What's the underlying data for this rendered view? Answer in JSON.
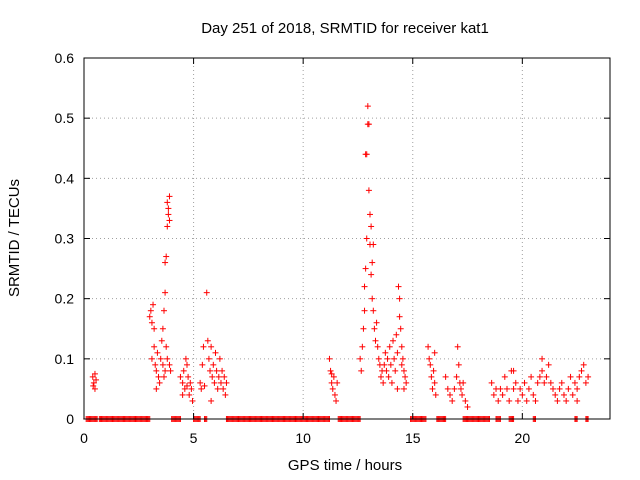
{
  "chart_data": {
    "type": "scatter",
    "title": "Day 251 of 2018, SRMTID for receiver kat1",
    "xlabel": "GPS time / hours",
    "ylabel": "SRMTID / TECUs",
    "xlim": [
      0,
      24
    ],
    "ylim": [
      0,
      0.6
    ],
    "xticks": [
      0,
      5,
      10,
      15,
      20
    ],
    "yticks": [
      0,
      0.1,
      0.2,
      0.3,
      0.4,
      0.5,
      0.6
    ],
    "xtick_labels": [
      "0",
      "5",
      "10",
      "15",
      "20"
    ],
    "ytick_labels": [
      "0",
      "0.1",
      "0.2",
      "0.3",
      "0.4",
      "0.5",
      "0.6"
    ],
    "grid": true,
    "marker": "+",
    "color": "#ff0000",
    "series": [
      {
        "name": "kat1",
        "points": [
          [
            0.4,
            0.07
          ],
          [
            0.45,
            0.06
          ],
          [
            0.5,
            0.075
          ],
          [
            0.5,
            0.05
          ],
          [
            0.55,
            0.065
          ],
          [
            0.42,
            0.055
          ],
          [
            3.0,
            0.17
          ],
          [
            3.05,
            0.18
          ],
          [
            3.1,
            0.16
          ],
          [
            3.15,
            0.19
          ],
          [
            3.2,
            0.15
          ],
          [
            3.1,
            0.1
          ],
          [
            3.2,
            0.12
          ],
          [
            3.25,
            0.09
          ],
          [
            3.3,
            0.08
          ],
          [
            3.35,
            0.11
          ],
          [
            3.4,
            0.07
          ],
          [
            3.45,
            0.06
          ],
          [
            3.3,
            0.05
          ],
          [
            3.5,
            0.1
          ],
          [
            3.55,
            0.13
          ],
          [
            3.6,
            0.15
          ],
          [
            3.65,
            0.18
          ],
          [
            3.7,
            0.21
          ],
          [
            3.75,
            0.27
          ],
          [
            3.7,
            0.26
          ],
          [
            3.8,
            0.32
          ],
          [
            3.85,
            0.34
          ],
          [
            3.8,
            0.36
          ],
          [
            3.9,
            0.37
          ],
          [
            3.85,
            0.35
          ],
          [
            3.9,
            0.33
          ],
          [
            3.75,
            0.12
          ],
          [
            3.8,
            0.1
          ],
          [
            3.9,
            0.09
          ],
          [
            3.95,
            0.08
          ],
          [
            3.6,
            0.09
          ],
          [
            3.65,
            0.07
          ],
          [
            3.7,
            0.08
          ],
          [
            4.4,
            0.07
          ],
          [
            4.5,
            0.06
          ],
          [
            4.55,
            0.08
          ],
          [
            4.6,
            0.05
          ],
          [
            4.65,
            0.1
          ],
          [
            4.7,
            0.09
          ],
          [
            4.75,
            0.07
          ],
          [
            4.8,
            0.04
          ],
          [
            4.85,
            0.06
          ],
          [
            4.9,
            0.05
          ],
          [
            4.95,
            0.03
          ],
          [
            4.5,
            0.04
          ],
          [
            4.7,
            0.055
          ],
          [
            5.3,
            0.06
          ],
          [
            5.35,
            0.05
          ],
          [
            5.4,
            0.09
          ],
          [
            5.45,
            0.12
          ],
          [
            5.5,
            0.055
          ],
          [
            5.6,
            0.21
          ],
          [
            5.65,
            0.13
          ],
          [
            5.7,
            0.1
          ],
          [
            5.75,
            0.08
          ],
          [
            5.8,
            0.12
          ],
          [
            5.85,
            0.07
          ],
          [
            5.9,
            0.09
          ],
          [
            5.95,
            0.06
          ],
          [
            6.0,
            0.11
          ],
          [
            6.05,
            0.08
          ],
          [
            6.1,
            0.05
          ],
          [
            6.15,
            0.07
          ],
          [
            6.2,
            0.1
          ],
          [
            6.25,
            0.06
          ],
          [
            6.3,
            0.08
          ],
          [
            6.35,
            0.05
          ],
          [
            6.4,
            0.07
          ],
          [
            6.45,
            0.04
          ],
          [
            6.5,
            0.06
          ],
          [
            5.8,
            0.03
          ],
          [
            11.2,
            0.1
          ],
          [
            11.25,
            0.08
          ],
          [
            11.3,
            0.06
          ],
          [
            11.35,
            0.05
          ],
          [
            11.4,
            0.07
          ],
          [
            11.45,
            0.04
          ],
          [
            11.5,
            0.03
          ],
          [
            11.55,
            0.06
          ],
          [
            11.3,
            0.075
          ],
          [
            12.6,
            0.1
          ],
          [
            12.65,
            0.08
          ],
          [
            12.7,
            0.12
          ],
          [
            12.75,
            0.15
          ],
          [
            12.8,
            0.18
          ],
          [
            12.8,
            0.22
          ],
          [
            12.85,
            0.25
          ],
          [
            12.9,
            0.3
          ],
          [
            12.9,
            0.44
          ],
          [
            12.95,
            0.49
          ],
          [
            12.95,
            0.52
          ],
          [
            13.0,
            0.49
          ],
          [
            12.85,
            0.44
          ],
          [
            13.0,
            0.38
          ],
          [
            13.05,
            0.34
          ],
          [
            13.05,
            0.29
          ],
          [
            13.1,
            0.32
          ],
          [
            13.1,
            0.24
          ],
          [
            13.15,
            0.2
          ],
          [
            13.15,
            0.26
          ],
          [
            13.2,
            0.29
          ],
          [
            13.2,
            0.18
          ],
          [
            13.25,
            0.15
          ],
          [
            13.3,
            0.13
          ],
          [
            13.35,
            0.16
          ],
          [
            13.4,
            0.12
          ],
          [
            13.45,
            0.1
          ],
          [
            13.5,
            0.09
          ],
          [
            13.55,
            0.07
          ],
          [
            13.6,
            0.08
          ],
          [
            13.65,
            0.06
          ],
          [
            13.7,
            0.09
          ],
          [
            13.75,
            0.11
          ],
          [
            13.8,
            0.08
          ],
          [
            13.85,
            0.1
          ],
          [
            13.9,
            0.07
          ],
          [
            13.95,
            0.12
          ],
          [
            14.0,
            0.09
          ],
          [
            14.05,
            0.06
          ],
          [
            14.1,
            0.13
          ],
          [
            14.15,
            0.1
          ],
          [
            14.2,
            0.08
          ],
          [
            14.25,
            0.14
          ],
          [
            14.3,
            0.11
          ],
          [
            14.35,
            0.22
          ],
          [
            14.4,
            0.2
          ],
          [
            14.4,
            0.17
          ],
          [
            14.45,
            0.15
          ],
          [
            14.5,
            0.12
          ],
          [
            14.5,
            0.09
          ],
          [
            14.55,
            0.1
          ],
          [
            14.6,
            0.08
          ],
          [
            14.65,
            0.07
          ],
          [
            14.7,
            0.06
          ],
          [
            14.6,
            0.05
          ],
          [
            14.3,
            0.05
          ],
          [
            15.7,
            0.12
          ],
          [
            15.75,
            0.1
          ],
          [
            15.8,
            0.09
          ],
          [
            15.85,
            0.07
          ],
          [
            15.9,
            0.05
          ],
          [
            15.95,
            0.08
          ],
          [
            16.0,
            0.06
          ],
          [
            16.05,
            0.04
          ],
          [
            16.0,
            0.11
          ],
          [
            16.5,
            0.07
          ],
          [
            16.6,
            0.05
          ],
          [
            16.7,
            0.04
          ],
          [
            16.8,
            0.03
          ],
          [
            16.9,
            0.05
          ],
          [
            17.0,
            0.07
          ],
          [
            17.05,
            0.12
          ],
          [
            17.1,
            0.09
          ],
          [
            17.15,
            0.06
          ],
          [
            17.2,
            0.05
          ],
          [
            17.25,
            0.04
          ],
          [
            17.3,
            0.06
          ],
          [
            17.4,
            0.03
          ],
          [
            17.5,
            0.02
          ],
          [
            18.6,
            0.06
          ],
          [
            18.7,
            0.04
          ],
          [
            18.8,
            0.05
          ],
          [
            18.9,
            0.03
          ],
          [
            19.0,
            0.05
          ],
          [
            19.1,
            0.04
          ],
          [
            19.2,
            0.07
          ],
          [
            19.3,
            0.05
          ],
          [
            19.4,
            0.03
          ],
          [
            19.5,
            0.08
          ],
          [
            19.6,
            0.05
          ],
          [
            19.7,
            0.06
          ],
          [
            19.8,
            0.03
          ],
          [
            19.9,
            0.05
          ],
          [
            20.0,
            0.04
          ],
          [
            20.1,
            0.06
          ],
          [
            20.2,
            0.03
          ],
          [
            20.3,
            0.05
          ],
          [
            20.4,
            0.07
          ],
          [
            20.5,
            0.04
          ],
          [
            20.6,
            0.03
          ],
          [
            20.7,
            0.06
          ],
          [
            20.8,
            0.07
          ],
          [
            20.9,
            0.08
          ],
          [
            21.0,
            0.06
          ],
          [
            21.1,
            0.07
          ],
          [
            21.2,
            0.09
          ],
          [
            21.3,
            0.06
          ],
          [
            21.4,
            0.05
          ],
          [
            21.5,
            0.04
          ],
          [
            21.6,
            0.03
          ],
          [
            21.7,
            0.05
          ],
          [
            21.8,
            0.06
          ],
          [
            21.9,
            0.04
          ],
          [
            22.0,
            0.03
          ],
          [
            22.1,
            0.05
          ],
          [
            22.2,
            0.07
          ],
          [
            22.3,
            0.04
          ],
          [
            22.4,
            0.06
          ],
          [
            22.5,
            0.05
          ],
          [
            22.6,
            0.07
          ],
          [
            22.7,
            0.08
          ],
          [
            22.8,
            0.09
          ],
          [
            22.9,
            0.06
          ],
          [
            23.0,
            0.07
          ],
          [
            20.9,
            0.1
          ],
          [
            19.6,
            0.08
          ],
          [
            22.5,
            0.03
          ]
        ],
        "zero_runs": [
          [
            0.1,
            0.6
          ],
          [
            0.7,
            3.0
          ],
          [
            4.0,
            4.4
          ],
          [
            5.0,
            5.3
          ],
          [
            5.5,
            5.6
          ],
          [
            6.5,
            11.2
          ],
          [
            11.6,
            12.6
          ],
          [
            14.9,
            15.6
          ],
          [
            16.1,
            16.5
          ],
          [
            17.3,
            18.5
          ],
          [
            18.8,
            19.0
          ],
          [
            19.4,
            19.6
          ],
          [
            20.5,
            20.6
          ],
          [
            22.4,
            22.5
          ],
          [
            22.9,
            23.0
          ]
        ]
      }
    ]
  }
}
